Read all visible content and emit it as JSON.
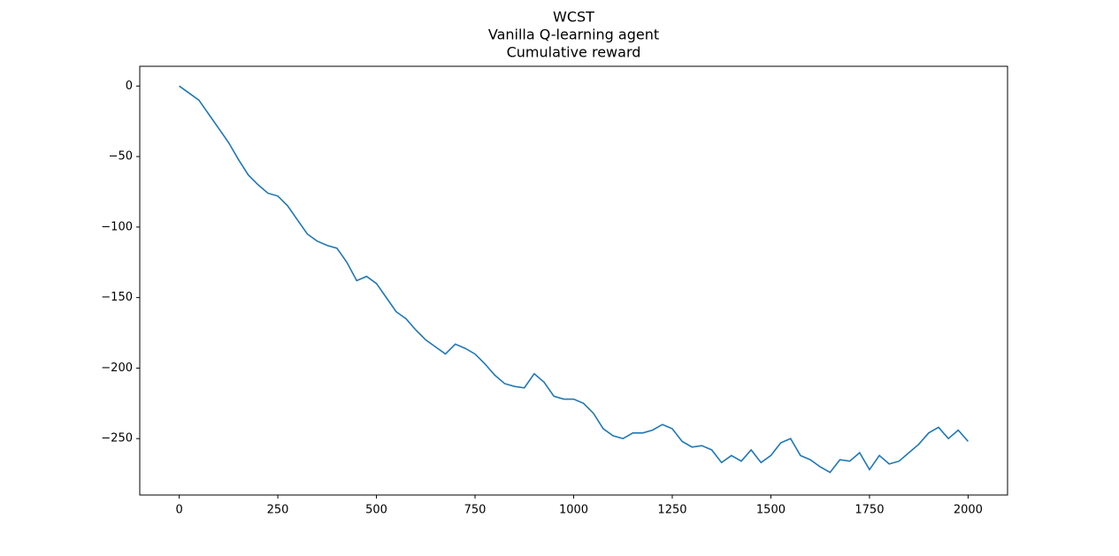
{
  "chart_data": {
    "type": "line",
    "title": [
      "WCST",
      "Vanilla Q-learning agent",
      "Cumulative reward"
    ],
    "x": [
      0,
      25,
      50,
      75,
      100,
      125,
      150,
      175,
      200,
      225,
      250,
      275,
      300,
      325,
      350,
      375,
      400,
      425,
      450,
      475,
      500,
      525,
      550,
      575,
      600,
      625,
      650,
      675,
      700,
      725,
      750,
      775,
      800,
      825,
      850,
      875,
      900,
      925,
      950,
      975,
      1000,
      1025,
      1050,
      1075,
      1100,
      1125,
      1150,
      1175,
      1200,
      1225,
      1250,
      1275,
      1300,
      1325,
      1350,
      1375,
      1400,
      1425,
      1450,
      1475,
      1500,
      1525,
      1550,
      1575,
      1600,
      1625,
      1650,
      1675,
      1700,
      1725,
      1750,
      1775,
      1800,
      1825,
      1850,
      1875,
      1900,
      1925,
      1950,
      1975,
      2000
    ],
    "series": [
      {
        "color": "#1f77b4",
        "values": [
          0,
          -5,
          -10,
          -20,
          -30,
          -40,
          -52,
          -63,
          -70,
          -76,
          -78,
          -85,
          -95,
          -105,
          -110,
          -113,
          -115,
          -125,
          -138,
          -135,
          -140,
          -150,
          -160,
          -165,
          -173,
          -180,
          -185,
          -190,
          -183,
          -186,
          -190,
          -197,
          -205,
          -211,
          -213,
          -214,
          -204,
          -210,
          -220,
          -222,
          -222,
          -225,
          -232,
          -243,
          -248,
          -250,
          -246,
          -246,
          -244,
          -240,
          -243,
          -252,
          -256,
          -255,
          -258,
          -267,
          -262,
          -266,
          -258,
          -267,
          -262,
          -253,
          -250,
          -262,
          -265,
          -270,
          -274,
          -265,
          -266,
          -260,
          -272,
          -262,
          -268,
          -266,
          -260,
          -254,
          -246,
          -242,
          -250,
          -244,
          -252
        ]
      }
    ],
    "xlim": [
      -100,
      2100
    ],
    "ylim": [
      -290,
      14
    ],
    "xticks": [
      0,
      250,
      500,
      750,
      1000,
      1250,
      1500,
      1750,
      2000
    ],
    "yticks": [
      0,
      {
        "value": -50,
        "label": "−50"
      },
      {
        "value": -100,
        "label": "−100"
      },
      {
        "value": -150,
        "label": "−150"
      },
      {
        "value": -200,
        "label": "−200"
      },
      {
        "value": -250,
        "label": "−250"
      }
    ]
  }
}
